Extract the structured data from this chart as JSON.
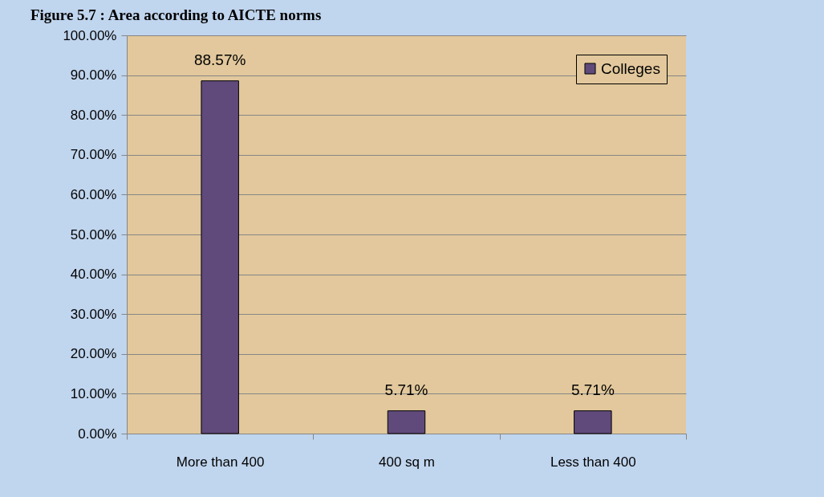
{
  "chart_data": {
    "type": "bar",
    "title": "Figure 5.7 : Area according to AICTE norms",
    "categories": [
      "More than 400",
      "400 sq m",
      "Less than 400"
    ],
    "series": [
      {
        "name": "Colleges",
        "color": "#604a7b",
        "values": [
          88.57,
          5.71,
          5.71
        ],
        "value_labels": [
          "88.57%",
          "5.71%",
          "5.71%"
        ]
      }
    ],
    "ylim": [
      0,
      100
    ],
    "yticks": [
      {
        "value": 0,
        "label": "0.00%"
      },
      {
        "value": 10,
        "label": "10.00%"
      },
      {
        "value": 20,
        "label": "20.00%"
      },
      {
        "value": 30,
        "label": "30.00%"
      },
      {
        "value": 40,
        "label": "40.00%"
      },
      {
        "value": 50,
        "label": "50.00%"
      },
      {
        "value": 60,
        "label": "60.00%"
      },
      {
        "value": 70,
        "label": "70.00%"
      },
      {
        "value": 80,
        "label": "80.00%"
      },
      {
        "value": 90,
        "label": "90.00%"
      },
      {
        "value": 100,
        "label": "100.00%"
      }
    ],
    "grid": "y",
    "legend": "top right"
  }
}
